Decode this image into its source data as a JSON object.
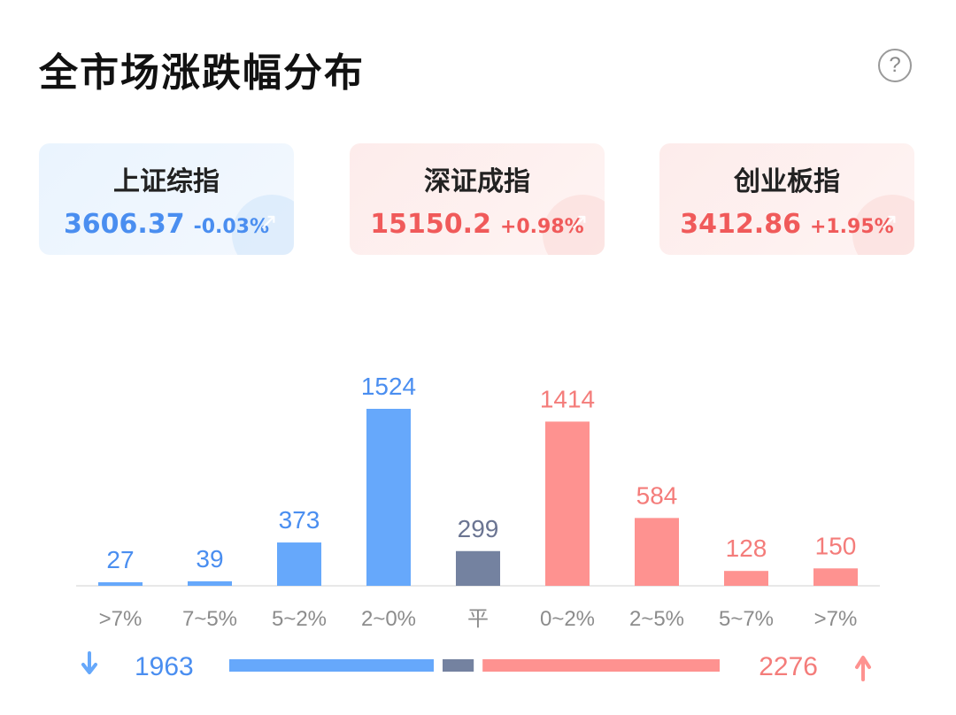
{
  "title": "全市场涨跌幅分布",
  "help_icon": "?",
  "cards": [
    {
      "name": "上证综指",
      "value": "3606.37",
      "change": "-0.03%",
      "trend_icon": "↗",
      "theme": "blue",
      "value_color": "#4a8ef0"
    },
    {
      "name": "深证成指",
      "value": "15150.2",
      "change": "+0.98%",
      "trend_icon": "↗",
      "theme": "red",
      "value_color": "#f05a5a"
    },
    {
      "name": "创业板指",
      "value": "3412.86",
      "change": "+1.95%",
      "trend_icon": "↗",
      "theme": "red",
      "value_color": "#f05a5a"
    }
  ],
  "colors": {
    "down": "#66a8fb",
    "flat": "#7482a0",
    "up": "#fe9290",
    "down_text": "#4a8ef0",
    "flat_text": "#6b7592",
    "up_text": "#f47c7a",
    "axis": "#e8e8e8",
    "tick_text": "#8c8c8c"
  },
  "chart_data": {
    "type": "bar",
    "categories": [
      ">7%",
      "7~5%",
      "5~2%",
      "2~0%",
      "平",
      "0~2%",
      "2~5%",
      "5~7%",
      ">7%"
    ],
    "values": [
      27,
      39,
      373,
      1524,
      299,
      1414,
      584,
      128,
      150
    ],
    "groups": [
      "down",
      "down",
      "down",
      "down",
      "flat",
      "up",
      "up",
      "up",
      "up"
    ],
    "ylim": [
      0,
      1524
    ]
  },
  "summary": {
    "down_icon": "arrow-down-icon",
    "down_total": "1963",
    "up_icon": "arrow-up-icon",
    "up_total": "2276",
    "down_count": 1963,
    "flat_count": 299,
    "up_count": 2276
  }
}
